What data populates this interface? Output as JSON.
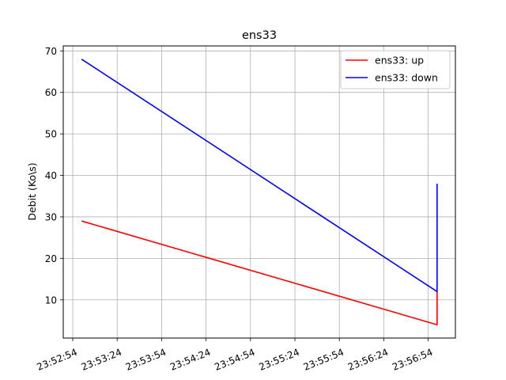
{
  "chart_data": {
    "type": "line",
    "title": "ens33",
    "xlabel": "",
    "ylabel": "Debit (Ko\\s)",
    "x_tick_labels": [
      "23:52:54",
      "23:53:24",
      "23:53:54",
      "23:54:24",
      "23:54:54",
      "23:55:24",
      "23:55:54",
      "23:56:24",
      "23:56:54"
    ],
    "y_ticks": [
      10,
      20,
      30,
      40,
      50,
      60,
      70
    ],
    "ylim": [
      0.8,
      71.2
    ],
    "grid": true,
    "legend_position": "top-right",
    "series": [
      {
        "name": "ens33: up",
        "color": "#ff0000",
        "points": [
          {
            "x": "23:53:00",
            "y": 29
          },
          {
            "x": "23:57:00",
            "y": 4
          },
          {
            "x": "23:57:00",
            "y": 12
          }
        ]
      },
      {
        "name": "ens33: down",
        "color": "#0000ff",
        "points": [
          {
            "x": "23:53:00",
            "y": 68
          },
          {
            "x": "23:57:00",
            "y": 12
          },
          {
            "x": "23:57:00",
            "y": 38
          }
        ]
      }
    ]
  }
}
